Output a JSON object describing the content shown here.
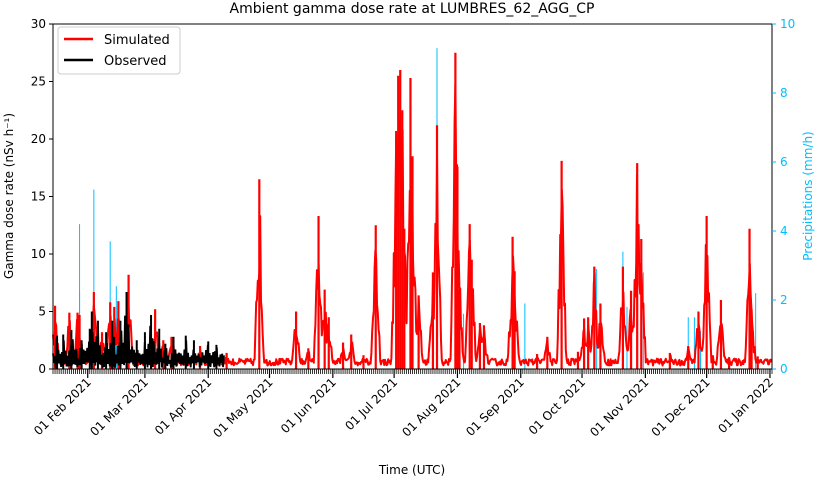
{
  "chart_data": {
    "type": "line",
    "title": "Ambient gamma dose rate at LUMBRES_62_AGG_CP",
    "xlabel": "Time (UTC)",
    "ylabel_left": "Gamma dose rate (nSv h⁻¹)",
    "ylabel_right": "Precipitations (mm/h)",
    "x_range": [
      "2021-01-15",
      "2022-01-02"
    ],
    "ylim_left": [
      0,
      30
    ],
    "ylim_right": [
      0,
      10
    ],
    "yticks_left": [
      "0",
      "5",
      "10",
      "15",
      "20",
      "25",
      "30"
    ],
    "yticks_right": [
      "0",
      "2",
      "4",
      "6",
      "8",
      "10"
    ],
    "xticks": [
      {
        "date": "2021-02-01",
        "label": "01 Feb 2021"
      },
      {
        "date": "2021-03-01",
        "label": "01 Mar 2021"
      },
      {
        "date": "2021-04-01",
        "label": "01 Apr 2021"
      },
      {
        "date": "2021-05-01",
        "label": "01 May 2021"
      },
      {
        "date": "2021-06-01",
        "label": "01 Jun 2021"
      },
      {
        "date": "2021-07-01",
        "label": "01 Jul 2021"
      },
      {
        "date": "2021-08-01",
        "label": "01 Aug 2021"
      },
      {
        "date": "2021-09-01",
        "label": "01 Sep 2021"
      },
      {
        "date": "2021-10-01",
        "label": "01 Oct 2021"
      },
      {
        "date": "2021-11-01",
        "label": "01 Nov 2021"
      },
      {
        "date": "2021-12-01",
        "label": "01 Dec 2021"
      },
      {
        "date": "2022-01-01",
        "label": "01 Jan 2022"
      }
    ],
    "legend": {
      "position": "top-left",
      "entries": [
        {
          "label": "Simulated",
          "color": "#ff0000"
        },
        {
          "label": "Observed",
          "color": "#000000"
        }
      ]
    },
    "series": [
      {
        "name": "Simulated",
        "axis": "left",
        "color": "#ff0000",
        "peaks": [
          [
            "2021-01-16",
            5.5
          ],
          [
            "2021-01-23",
            4.9
          ],
          [
            "2021-01-27",
            4.9
          ],
          [
            "2021-01-28",
            4.7
          ],
          [
            "2021-02-04",
            6.7
          ],
          [
            "2021-02-08",
            3.2
          ],
          [
            "2021-02-12",
            5.8
          ],
          [
            "2021-02-14",
            5.4
          ],
          [
            "2021-02-16",
            5.9
          ],
          [
            "2021-02-21",
            8.2
          ],
          [
            "2021-03-06",
            5.2
          ],
          [
            "2021-03-10",
            2.5
          ],
          [
            "2021-03-14",
            2.8
          ],
          [
            "2021-03-28",
            2.0
          ],
          [
            "2021-04-10",
            1.4
          ],
          [
            "2021-04-26",
            16.5
          ],
          [
            "2021-05-14",
            5.0
          ],
          [
            "2021-05-20",
            1.8
          ],
          [
            "2021-05-25",
            13.3
          ],
          [
            "2021-05-28",
            6.9
          ],
          [
            "2021-05-30",
            4.5
          ],
          [
            "2021-06-06",
            2.3
          ],
          [
            "2021-06-10",
            3.0
          ],
          [
            "2021-06-16",
            1.2
          ],
          [
            "2021-06-22",
            12.5
          ],
          [
            "2021-07-02",
            20.7
          ],
          [
            "2021-07-03",
            25.5
          ],
          [
            "2021-07-04",
            26.0
          ],
          [
            "2021-07-05",
            22.5
          ],
          [
            "2021-07-06",
            12.2
          ],
          [
            "2021-07-09",
            25.3
          ],
          [
            "2021-07-10",
            18.5
          ],
          [
            "2021-07-13",
            6.4
          ],
          [
            "2021-07-20",
            8.4
          ],
          [
            "2021-07-22",
            21.2
          ],
          [
            "2021-07-31",
            27.5
          ],
          [
            "2021-08-01",
            17.6
          ],
          [
            "2021-08-02",
            7.0
          ],
          [
            "2021-08-07",
            12.6
          ],
          [
            "2021-08-08",
            9.5
          ],
          [
            "2021-08-12",
            4.0
          ],
          [
            "2021-08-14",
            3.8
          ],
          [
            "2021-08-28",
            11.5
          ],
          [
            "2021-08-29",
            8.5
          ],
          [
            "2021-09-09",
            1.3
          ],
          [
            "2021-09-14",
            2.8
          ],
          [
            "2021-09-21",
            18.1
          ],
          [
            "2021-09-29",
            1.5
          ],
          [
            "2021-10-02",
            4.4
          ],
          [
            "2021-10-04",
            4.5
          ],
          [
            "2021-10-07",
            8.9
          ],
          [
            "2021-10-10",
            5.7
          ],
          [
            "2021-10-21",
            8.9
          ],
          [
            "2021-10-25",
            6.8
          ],
          [
            "2021-10-28",
            17.9
          ],
          [
            "2021-10-30",
            11.3
          ],
          [
            "2021-11-13",
            1.4
          ],
          [
            "2021-11-22",
            2.0
          ],
          [
            "2021-11-27",
            5.0
          ],
          [
            "2021-12-01",
            13.3
          ],
          [
            "2021-12-04",
            1.2
          ],
          [
            "2021-12-08",
            6.0
          ],
          [
            "2021-12-12",
            1.0
          ],
          [
            "2021-12-22",
            12.2
          ],
          [
            "2021-12-23",
            5.2
          ],
          [
            "2021-12-26",
            1.1
          ]
        ]
      },
      {
        "name": "Observed",
        "axis": "left",
        "color": "#000000",
        "x_range": [
          "2021-01-15",
          "2021-04-09"
        ],
        "peaks": [
          [
            "2021-01-17",
            2.9
          ],
          [
            "2021-01-20",
            3.0
          ],
          [
            "2021-01-24",
            3.4
          ],
          [
            "2021-01-29",
            2.5
          ],
          [
            "2021-02-02",
            3.5
          ],
          [
            "2021-02-03",
            5.0
          ],
          [
            "2021-02-06",
            4.2
          ],
          [
            "2021-02-10",
            3.2
          ],
          [
            "2021-02-13",
            4.2
          ],
          [
            "2021-02-17",
            4.2
          ],
          [
            "2021-02-20",
            6.7
          ],
          [
            "2021-02-25",
            2.5
          ],
          [
            "2021-03-01",
            3.2
          ],
          [
            "2021-03-04",
            4.7
          ],
          [
            "2021-03-08",
            3.5
          ],
          [
            "2021-03-11",
            2.2
          ],
          [
            "2021-03-15",
            2.8
          ],
          [
            "2021-03-21",
            2.9
          ],
          [
            "2021-03-25",
            2.5
          ],
          [
            "2021-04-01",
            2.4
          ],
          [
            "2021-04-05",
            2.1
          ]
        ]
      },
      {
        "name": "Precipitations",
        "axis": "right",
        "color": "#00bfff",
        "type": "bar",
        "points": [
          [
            "2021-01-28",
            4.2
          ],
          [
            "2021-01-28",
            2.2
          ],
          [
            "2021-02-04",
            5.2
          ],
          [
            "2021-02-12",
            3.7
          ],
          [
            "2021-02-15",
            2.4
          ],
          [
            "2021-03-06",
            1.5
          ],
          [
            "2021-05-25",
            1.0
          ],
          [
            "2021-06-06",
            0.7
          ],
          [
            "2021-07-04",
            8.6
          ],
          [
            "2021-07-09",
            7.5
          ],
          [
            "2021-07-22",
            9.3
          ],
          [
            "2021-07-31",
            8.8
          ],
          [
            "2021-08-04",
            1.6
          ],
          [
            "2021-08-29",
            2.1
          ],
          [
            "2021-09-03",
            1.9
          ],
          [
            "2021-10-08",
            2.9
          ],
          [
            "2021-10-21",
            3.4
          ],
          [
            "2021-10-23",
            1.8
          ],
          [
            "2021-10-31",
            2.8
          ],
          [
            "2021-11-22",
            1.5
          ],
          [
            "2021-11-25",
            1.5
          ],
          [
            "2021-11-28",
            1.1
          ],
          [
            "2021-12-25",
            2.2
          ]
        ]
      }
    ]
  }
}
